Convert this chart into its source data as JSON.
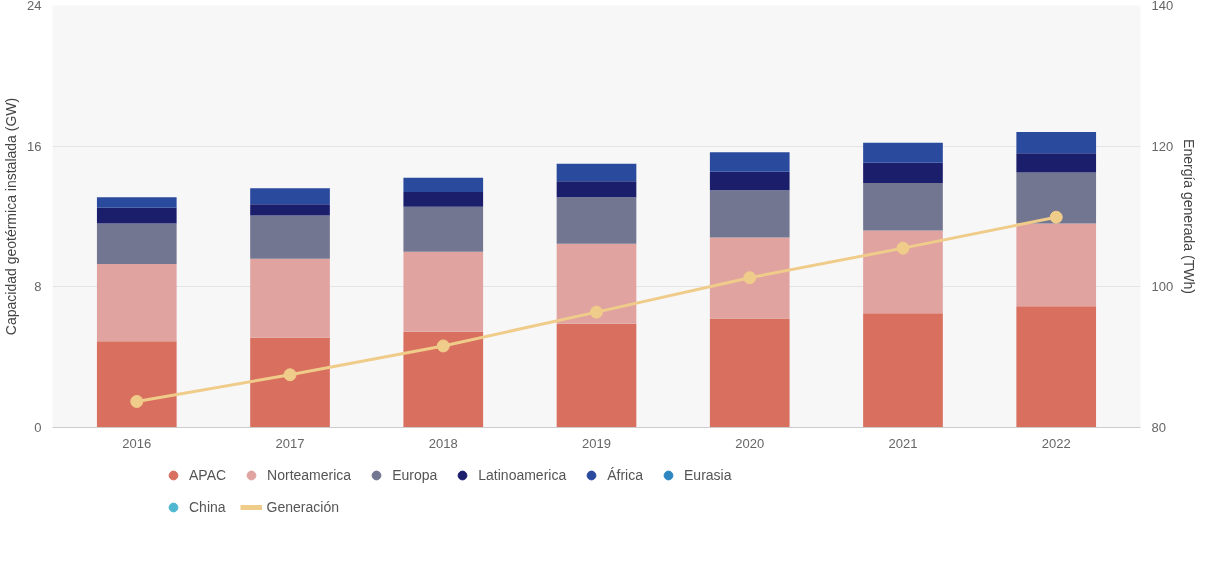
{
  "chart_data": {
    "type": "bar",
    "stacked": true,
    "ylabel": "Capacidad geotérmica instalada (GW)",
    "y2label": "Energía generada (TWh)",
    "categories": [
      "2016",
      "2017",
      "2018",
      "2019",
      "2020",
      "2021",
      "2022"
    ],
    "ylim": [
      0,
      24
    ],
    "yticks": [
      0,
      8,
      16,
      24
    ],
    "y2lim": [
      80,
      140
    ],
    "y2ticks": [
      80,
      100,
      120,
      140
    ],
    "grid": "y",
    "legend": "bottom",
    "series": [
      {
        "name": "APAC",
        "color": "#d9705f",
        "values": [
          4.9,
          5.1,
          5.45,
          5.9,
          6.2,
          6.5,
          6.9
        ]
      },
      {
        "name": "Norteamerica",
        "color": "#e0a3a0",
        "values": [
          4.4,
          4.5,
          4.55,
          4.55,
          4.6,
          4.7,
          4.7
        ]
      },
      {
        "name": "Europa",
        "color": "#737690",
        "values": [
          2.3,
          2.45,
          2.55,
          2.65,
          2.7,
          2.7,
          2.9
        ]
      },
      {
        "name": "Latinoamerica",
        "color": "#1b1f6b",
        "values": [
          0.9,
          0.65,
          0.85,
          0.9,
          1.05,
          1.15,
          1.1
        ]
      },
      {
        "name": "África",
        "color": "#2a4a9e",
        "values": [
          0.6,
          0.9,
          0.8,
          1.0,
          1.1,
          1.15,
          1.2
        ]
      },
      {
        "name": "Eurasia",
        "color": "#2e86c1",
        "values": [
          0,
          0,
          0,
          0,
          0,
          0,
          0
        ]
      },
      {
        "name": "China",
        "color": "#4fb8d0",
        "values": [
          0,
          0,
          0,
          0,
          0,
          0,
          0
        ]
      },
      {
        "name": "Generación",
        "color": "#f0cc8a",
        "type": "line",
        "axis": "y2",
        "marker": "circle",
        "values": [
          83.7,
          87.5,
          91.6,
          96.4,
          101.3,
          105.5,
          109.9
        ]
      }
    ]
  }
}
